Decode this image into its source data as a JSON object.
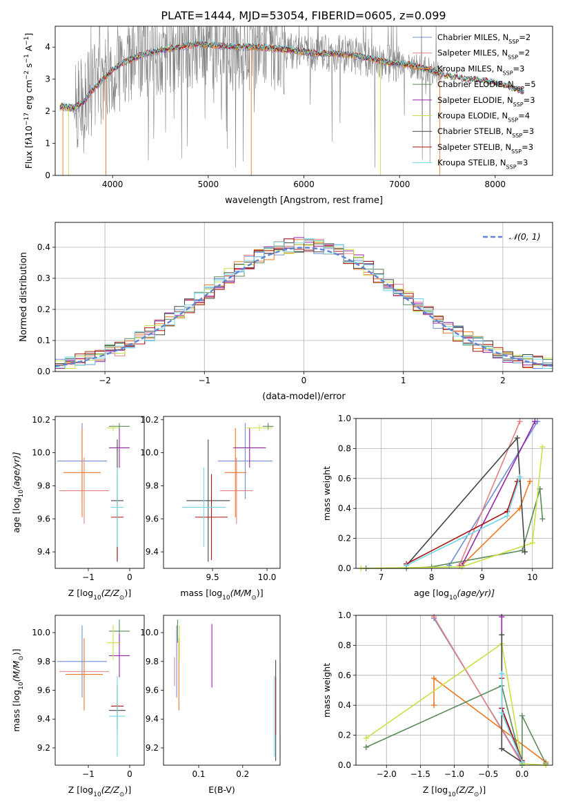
{
  "figure": {
    "title": "PLATE=1444, MJD=53054, FIBERID=0605, z=0.099"
  },
  "colors": {
    "chabrier_miles": "#6a8fd8",
    "salpeter_miles": "#e88080",
    "kroupa_miles": "#ee7722",
    "chabrier_elodie": "#5a8a5a",
    "salpeter_elodie": "#9922aa",
    "kroupa_elodie": "#c8e040",
    "chabrier_stelib": "#444444",
    "salpeter_stelib": "#aa1111",
    "kroupa_stelib": "#70d8e8",
    "spectrum": "#808080",
    "gaussian": "#5b84d6"
  },
  "chart_data": [
    {
      "id": "spectrum",
      "type": "line",
      "xlabel": "wavelength [Angstrom, rest frame]",
      "ylabel": "Flux [f",
      "ylabel_parts": [
        "Flux [f",
        "λ",
        "10",
        "−17",
        " erg cm",
        "−2",
        " s",
        "−1",
        " A",
        "−1",
        "]"
      ],
      "xlim": [
        3400,
        8600
      ],
      "ylim": [
        0,
        4.65
      ],
      "xticks": [
        4000,
        5000,
        6000,
        7000,
        8000
      ],
      "yticks": [
        0,
        1,
        2,
        3,
        4
      ],
      "grid": false,
      "legend_position": "top-right",
      "legend": [
        {
          "label": "Chabrier MILES, N",
          "sub": "SSP",
          "n": "=2",
          "color_key": "chabrier_miles"
        },
        {
          "label": "Salpeter MILES, N",
          "sub": "SSP",
          "n": "=2",
          "color_key": "salpeter_miles"
        },
        {
          "label": "Kroupa MILES, N",
          "sub": "SSP",
          "n": "=3",
          "color_key": "kroupa_miles"
        },
        {
          "label": "Chabrier ELODIE, N",
          "sub": "SSP",
          "n": "=5",
          "color_key": "chabrier_elodie"
        },
        {
          "label": "Salpeter ELODIE, N",
          "sub": "SSP",
          "n": "=3",
          "color_key": "salpeter_elodie"
        },
        {
          "label": "Kroupa ELODIE, N",
          "sub": "SSP",
          "n": "=4",
          "color_key": "kroupa_elodie"
        },
        {
          "label": "Chabrier STELIB, N",
          "sub": "SSP",
          "n": "=3",
          "color_key": "chabrier_stelib"
        },
        {
          "label": "Salpeter STELIB, N",
          "sub": "SSP",
          "n": "=3",
          "color_key": "salpeter_stelib"
        },
        {
          "label": "Kroupa STELIB, N",
          "sub": "SSP",
          "n": "=3",
          "color_key": "kroupa_stelib"
        }
      ],
      "model_continuum": {
        "x": [
          3450,
          3600,
          3700,
          3800,
          3900,
          4000,
          4100,
          4300,
          4500,
          4700,
          4900,
          5100,
          5300,
          5500,
          5700,
          5900,
          6100,
          6300,
          6500,
          6700,
          6900,
          7100,
          7300,
          7500,
          7700,
          7900,
          8100,
          8300
        ],
        "y": [
          2.15,
          2.1,
          2.3,
          2.7,
          3.0,
          3.3,
          3.5,
          3.75,
          3.9,
          4.0,
          4.1,
          4.05,
          4.0,
          4.0,
          3.95,
          3.9,
          3.8,
          3.8,
          3.75,
          3.65,
          3.5,
          3.45,
          3.3,
          3.1,
          3.0,
          2.95,
          2.8,
          2.6
        ]
      }
    },
    {
      "id": "residuals",
      "type": "line",
      "xlabel": "(data-model)/error",
      "ylabel": "Normed distribution",
      "xlim": [
        -2.5,
        2.5
      ],
      "ylim": [
        0,
        0.48
      ],
      "xticks": [
        -2,
        -1,
        0,
        1,
        2
      ],
      "yticks": [
        0.0,
        0.1,
        0.2,
        0.3,
        0.4
      ],
      "grid": true,
      "legend_position": "top-right",
      "gaussian_label": "𝒩(0, 1)"
    },
    {
      "id": "age_vs_Z",
      "type": "scatter",
      "xlabel": "Z [log",
      "xlabel_parts": [
        "Z [log",
        "10",
        "(Z/Z",
        "⊙",
        ")]"
      ],
      "ylabel": "age  [log",
      "ylabel_parts": [
        "age  [log",
        "10",
        "(age/yr)]"
      ],
      "xlim": [
        -1.8,
        0.35
      ],
      "ylim": [
        9.3,
        10.22
      ],
      "xticks": [
        -1,
        0
      ],
      "yticks": [
        9.4,
        9.6,
        9.8,
        10.0,
        10.2
      ],
      "grid": false,
      "points": [
        {
          "color_key": "chabrier_miles",
          "x": -1.15,
          "xerr": 0.6,
          "y": 9.95,
          "yerr": 0.23
        },
        {
          "color_key": "salpeter_miles",
          "x": -1.1,
          "xerr": 0.6,
          "y": 9.77,
          "yerr": 0.2
        },
        {
          "color_key": "kroupa_miles",
          "x": -1.15,
          "xerr": 0.45,
          "y": 9.88,
          "yerr": 0.27
        },
        {
          "color_key": "chabrier_elodie",
          "x": -0.25,
          "xerr": 0.25,
          "y": 10.16,
          "yerr": 0.02
        },
        {
          "color_key": "salpeter_elodie",
          "x": -0.25,
          "xerr": 0.25,
          "y": 10.03,
          "yerr": 0.12
        },
        {
          "color_key": "kroupa_elodie",
          "x": -0.4,
          "xerr": 0.15,
          "y": 10.15,
          "yerr": 0.02
        },
        {
          "color_key": "chabrier_stelib",
          "x": -0.3,
          "xerr": 0.15,
          "y": 9.71,
          "yerr": 0.37
        },
        {
          "color_key": "salpeter_stelib",
          "x": -0.3,
          "xerr": 0.15,
          "y": 9.61,
          "yerr": 0.26
        },
        {
          "color_key": "kroupa_stelib",
          "x": -0.3,
          "xerr": 0.15,
          "y": 9.67,
          "yerr": 0.24
        }
      ]
    },
    {
      "id": "age_vs_mass",
      "type": "scatter",
      "xlabel": "mass [log",
      "xlabel_parts": [
        "mass [log",
        "10",
        "(M/M",
        "⊙",
        ")]"
      ],
      "ylabel": "",
      "xlim": [
        9.05,
        10.12
      ],
      "ylim": [
        9.3,
        10.22
      ],
      "xticks": [
        9.5,
        10.0
      ],
      "yticks": [
        9.4,
        9.6,
        9.8,
        10.0,
        10.2
      ],
      "grid": false,
      "points": [
        {
          "color_key": "chabrier_miles",
          "x": 9.8,
          "xerr": 0.25,
          "y": 9.95,
          "yerr": 0.23
        },
        {
          "color_key": "salpeter_miles",
          "x": 9.72,
          "xerr": 0.15,
          "y": 9.77,
          "yerr": 0.2
        },
        {
          "color_key": "kroupa_miles",
          "x": 9.71,
          "xerr": 0.1,
          "y": 9.88,
          "yerr": 0.27
        },
        {
          "color_key": "chabrier_elodie",
          "x": 10.01,
          "xerr": 0.05,
          "y": 10.16,
          "yerr": 0.02
        },
        {
          "color_key": "salpeter_elodie",
          "x": 9.84,
          "xerr": 0.15,
          "y": 10.03,
          "yerr": 0.12
        },
        {
          "color_key": "kroupa_elodie",
          "x": 9.93,
          "xerr": 0.12,
          "y": 10.15,
          "yerr": 0.02
        },
        {
          "color_key": "chabrier_stelib",
          "x": 9.46,
          "xerr": 0.2,
          "y": 9.71,
          "yerr": 0.37
        },
        {
          "color_key": "salpeter_stelib",
          "x": 9.49,
          "xerr": 0.15,
          "y": 9.61,
          "yerr": 0.26
        },
        {
          "color_key": "kroupa_stelib",
          "x": 9.42,
          "xerr": 0.2,
          "y": 9.67,
          "yerr": 0.24
        }
      ]
    },
    {
      "id": "weight_vs_age",
      "type": "line",
      "xlabel": "age  [log",
      "xlabel_parts": [
        "age  [log",
        "10",
        "(age/yr)]"
      ],
      "ylabel": "mass weight",
      "xlim": [
        6.5,
        10.4
      ],
      "ylim": [
        0,
        1
      ],
      "xticks": [
        7,
        8,
        9,
        10
      ],
      "yticks": [
        0.0,
        0.2,
        0.4,
        0.6,
        0.8,
        1.0
      ],
      "grid": true,
      "series": [
        {
          "color_key": "chabrier_miles",
          "x": [
            8.35,
            10.1
          ],
          "y": [
            0.02,
            0.98
          ]
        },
        {
          "color_key": "salpeter_miles",
          "x": [
            8.55,
            9.75
          ],
          "y": [
            0.02,
            0.98
          ]
        },
        {
          "color_key": "kroupa_miles",
          "x": [
            8.6,
            9.75,
            9.95
          ],
          "y": [
            0.02,
            0.4,
            0.58
          ]
        },
        {
          "color_key": "chabrier_elodie",
          "x": [
            6.7,
            7.5,
            8.0,
            9.8,
            10.15,
            10.2
          ],
          "y": [
            0.0,
            0.0,
            0.01,
            0.12,
            0.53,
            0.33
          ]
        },
        {
          "color_key": "salpeter_elodie",
          "x": [
            8.6,
            10.05
          ],
          "y": [
            0.02,
            0.98
          ]
        },
        {
          "color_key": "kroupa_elodie",
          "x": [
            6.6,
            8.6,
            10.0,
            10.2
          ],
          "y": [
            0.0,
            0.01,
            0.17,
            0.81
          ]
        },
        {
          "color_key": "chabrier_stelib",
          "x": [
            7.5,
            9.7,
            9.85
          ],
          "y": [
            0.02,
            0.87,
            0.11
          ]
        },
        {
          "color_key": "salpeter_stelib",
          "x": [
            7.5,
            9.5,
            9.7
          ],
          "y": [
            0.03,
            0.38,
            0.58
          ]
        },
        {
          "color_key": "kroupa_stelib",
          "x": [
            7.5,
            9.5,
            9.75
          ],
          "y": [
            0.02,
            0.35,
            0.61
          ]
        }
      ]
    },
    {
      "id": "mass_vs_Z",
      "type": "scatter",
      "xlabel": "Z [log",
      "xlabel_parts": [
        "Z [log",
        "10",
        "(Z/Z",
        "⊙",
        ")]"
      ],
      "ylabel": "mass [log",
      "ylabel_parts": [
        "mass [log",
        "10",
        "(M/M",
        "⊙",
        ")]"
      ],
      "xlim": [
        -1.8,
        0.35
      ],
      "ylim": [
        9.08,
        10.12
      ],
      "xticks": [
        -1,
        0
      ],
      "yticks": [
        9.2,
        9.4,
        9.6,
        9.8,
        10.0
      ],
      "grid": false,
      "points": [
        {
          "color_key": "chabrier_miles",
          "x": -1.15,
          "xerr": 0.6,
          "y": 9.8,
          "yerr": 0.25
        },
        {
          "color_key": "salpeter_miles",
          "x": -1.1,
          "xerr": 0.6,
          "y": 9.73,
          "yerr": 0.1
        },
        {
          "color_key": "kroupa_miles",
          "x": -1.1,
          "xerr": 0.45,
          "y": 9.71,
          "yerr": 0.25
        },
        {
          "color_key": "chabrier_elodie",
          "x": -0.25,
          "xerr": 0.25,
          "y": 10.01,
          "yerr": 0.08
        },
        {
          "color_key": "salpeter_elodie",
          "x": -0.25,
          "xerr": 0.25,
          "y": 9.84,
          "yerr": 0.15
        },
        {
          "color_key": "kroupa_elodie",
          "x": -0.4,
          "xerr": 0.15,
          "y": 9.93,
          "yerr": 0.12
        },
        {
          "color_key": "chabrier_stelib",
          "x": -0.3,
          "xerr": 0.2,
          "y": 9.46,
          "yerr": 0.17
        },
        {
          "color_key": "salpeter_stelib",
          "x": -0.3,
          "xerr": 0.15,
          "y": 9.49,
          "yerr": 0.15
        },
        {
          "color_key": "kroupa_stelib",
          "x": -0.3,
          "xerr": 0.2,
          "y": 9.42,
          "yerr": 0.28
        }
      ]
    },
    {
      "id": "mass_vs_ebv",
      "type": "scatter",
      "xlabel": "E(B-V)",
      "ylabel": "",
      "xlim": [
        0.02,
        0.285
      ],
      "ylim": [
        9.08,
        10.12
      ],
      "xticks": [
        0.1,
        0.2
      ],
      "yticks": [
        9.2,
        9.4,
        9.6,
        9.8,
        10.0
      ],
      "grid": false,
      "points": [
        {
          "color_key": "chabrier_miles",
          "x": 0.05,
          "xerr": 0.0,
          "y": 9.8,
          "yerr": 0.25
        },
        {
          "color_key": "salpeter_miles",
          "x": 0.045,
          "xerr": 0.0,
          "y": 9.73,
          "yerr": 0.1
        },
        {
          "color_key": "kroupa_miles",
          "x": 0.055,
          "xerr": 0.0,
          "y": 9.71,
          "yerr": 0.25
        },
        {
          "color_key": "chabrier_elodie",
          "x": 0.052,
          "xerr": 0.0,
          "y": 10.01,
          "yerr": 0.08
        },
        {
          "color_key": "salpeter_elodie",
          "x": 0.13,
          "xerr": 0.0,
          "y": 9.84,
          "yerr": 0.22
        },
        {
          "color_key": "kroupa_elodie",
          "x": 0.056,
          "xerr": 0.0,
          "y": 9.93,
          "yerr": 0.12
        },
        {
          "color_key": "chabrier_stelib",
          "x": 0.275,
          "xerr": 0.0,
          "y": 9.46,
          "yerr": 0.35
        },
        {
          "color_key": "salpeter_stelib",
          "x": 0.275,
          "xerr": 0.0,
          "y": 9.49,
          "yerr": 0.2
        },
        {
          "color_key": "kroupa_stelib",
          "x": 0.272,
          "xerr": 0.0,
          "y": 9.42,
          "yerr": 0.28
        }
      ]
    },
    {
      "id": "weight_vs_Z",
      "type": "line",
      "xlabel": "Z [log",
      "xlabel_parts": [
        "Z [log",
        "10",
        "(Z/Z",
        "⊙",
        ")]"
      ],
      "ylabel": "mass weight",
      "xlim": [
        -2.45,
        0.45
      ],
      "ylim": [
        0,
        1
      ],
      "xticks": [
        -2.0,
        -1.5,
        -1.0,
        -0.5,
        0.0
      ],
      "yticks": [
        0.0,
        0.2,
        0.4,
        0.6,
        0.8,
        1.0
      ],
      "grid": true,
      "series": [
        {
          "color_key": "chabrier_miles",
          "x": [
            -1.3,
            0.0
          ],
          "y": [
            0.98,
            0.02
          ]
        },
        {
          "color_key": "salpeter_miles",
          "x": [
            -1.3,
            0.0
          ],
          "y": [
            0.99,
            0.01
          ]
        },
        {
          "color_key": "kroupa_miles",
          "x": [
            -1.3,
            -1.3,
            0.35
          ],
          "y": [
            0.4,
            0.58,
            0.02
          ]
        },
        {
          "color_key": "chabrier_elodie",
          "x": [
            -2.3,
            -0.3,
            0.0,
            0.0,
            0.35
          ],
          "y": [
            0.12,
            0.53,
            0.0,
            0.33,
            0.01
          ]
        },
        {
          "color_key": "salpeter_elodie",
          "x": [
            -0.3,
            -0.3,
            0.0
          ],
          "y": [
            0.99,
            0.38,
            0.01
          ]
        },
        {
          "color_key": "kroupa_elodie",
          "x": [
            -2.3,
            -0.3,
            0.0,
            0.35
          ],
          "y": [
            0.18,
            0.81,
            0.01,
            0.0
          ]
        },
        {
          "color_key": "chabrier_stelib",
          "x": [
            -0.3,
            -0.3,
            0.0
          ],
          "y": [
            0.87,
            0.11,
            0.02
          ]
        },
        {
          "color_key": "salpeter_stelib",
          "x": [
            -0.3,
            -0.3,
            0.0
          ],
          "y": [
            0.58,
            0.38,
            0.03
          ]
        },
        {
          "color_key": "kroupa_stelib",
          "x": [
            -0.3,
            -0.3,
            0.0
          ],
          "y": [
            0.61,
            0.35,
            0.02
          ]
        }
      ]
    }
  ]
}
